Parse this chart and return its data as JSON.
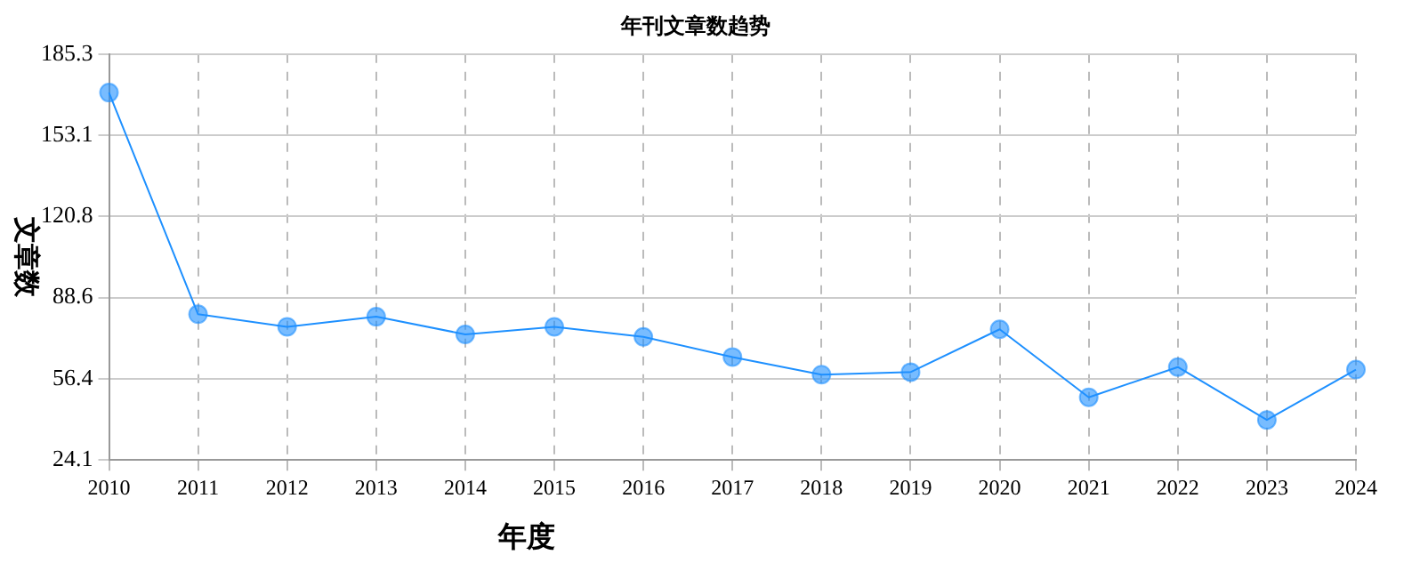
{
  "chart_data": {
    "type": "line",
    "title": "年刊文章数趋势",
    "xlabel": "年度",
    "ylabel": "文章数",
    "categories": [
      "2010",
      "2011",
      "2012",
      "2013",
      "2014",
      "2015",
      "2016",
      "2017",
      "2018",
      "2019",
      "2020",
      "2021",
      "2022",
      "2023",
      "2024"
    ],
    "series": [
      {
        "color": "#1e90ff",
        "values": [
          170,
          82,
          77,
          81,
          74,
          77,
          73,
          65,
          58,
          59,
          76,
          49,
          61,
          40,
          60
        ]
      }
    ],
    "ylim": [
      24.1,
      185.3
    ],
    "yticks": [
      24.1,
      56.4,
      88.6,
      120.8,
      153.1,
      185.3
    ],
    "grid": true,
    "legend": false,
    "marker": "circle",
    "line_style": "solid"
  }
}
